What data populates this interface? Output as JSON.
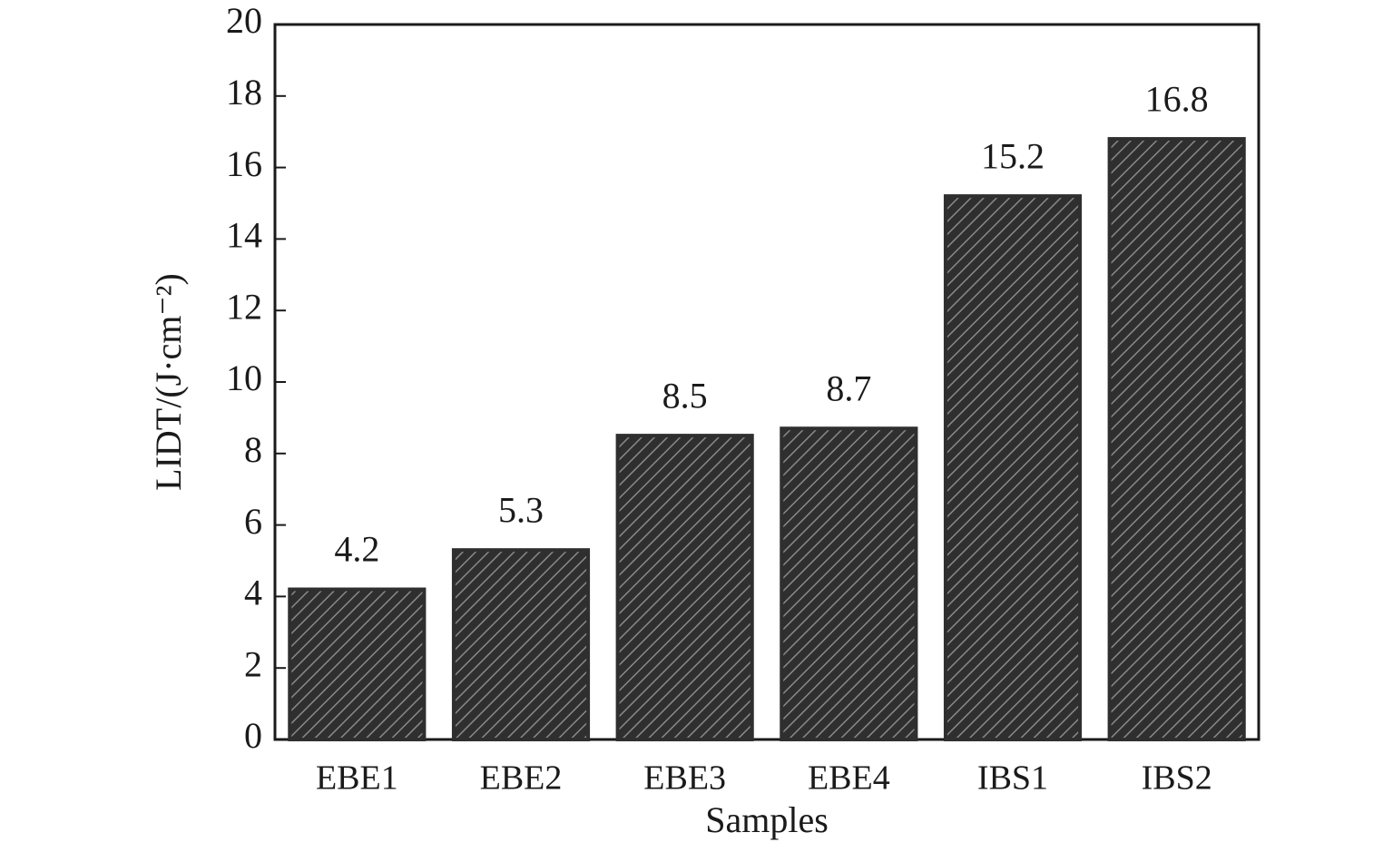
{
  "chart_data": {
    "type": "bar",
    "x_label": "Samples",
    "y_label": "LIDT/(J·cm⁻²)",
    "categories": [
      "EBE1",
      "EBE2",
      "EBE3",
      "EBE4",
      "IBS1",
      "IBS2"
    ],
    "values": [
      4.2,
      5.3,
      8.5,
      8.7,
      15.2,
      16.8
    ],
    "color": "#2f2f2f",
    "ylim": [
      0,
      20
    ],
    "yticks": [
      0,
      2,
      4,
      6,
      8,
      10,
      12,
      14,
      16,
      18,
      20
    ],
    "grid": false
  }
}
